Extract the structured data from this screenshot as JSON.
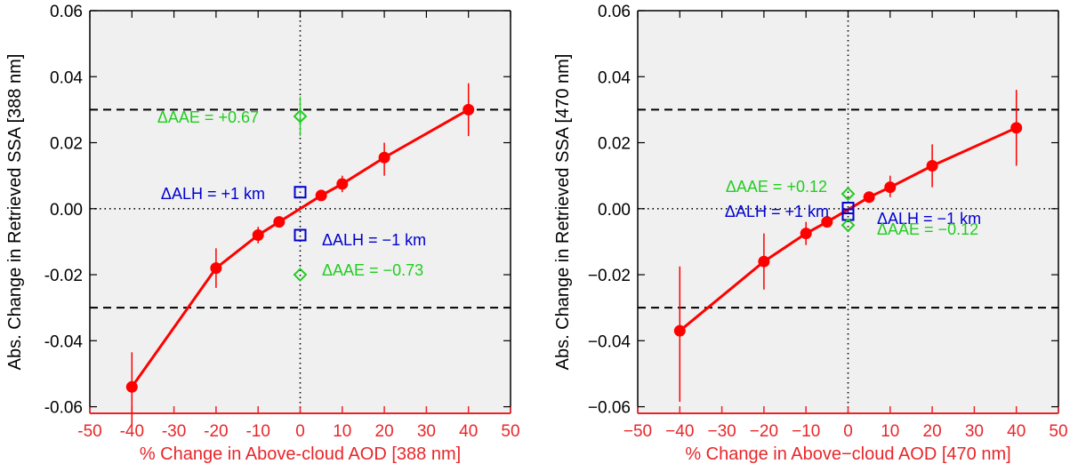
{
  "colors": {
    "background": "#ffffff",
    "plot_background": "#f0f0f0",
    "frame": "#000000",
    "x_axis": "#e8262a",
    "series": "#ff0000",
    "alh_markers": "#0000d0",
    "aae_markers": "#22cc22"
  },
  "chart_data": [
    {
      "type": "scatter",
      "xlabel": "% Change in Above-cloud AOD [388 nm]",
      "ylabel": "Abs. Change in Retrieved SSA [388 nm]",
      "xlim": [
        -50,
        50
      ],
      "ylim": [
        -0.062,
        0.06
      ],
      "xticks": [
        "-50",
        "-40",
        "-30",
        "-20",
        "-10",
        "0",
        "10",
        "20",
        "30",
        "40",
        "50"
      ],
      "yticks": [
        "-0.06",
        "-0.04",
        "-0.02",
        "0.00",
        "0.02",
        "0.04",
        "0.06"
      ],
      "reference_lines_y": [
        0.03,
        -0.03
      ],
      "grid": false,
      "series": [
        {
          "x": [
            -40,
            -20,
            -10,
            -5,
            5,
            10,
            20,
            40
          ],
          "y": [
            -0.054,
            -0.018,
            -0.008,
            -0.004,
            0.004,
            0.0075,
            0.0155,
            0.03
          ],
          "err_lo": [
            0.0115,
            0.006,
            0.0025,
            0.0012,
            0.0012,
            0.0025,
            0.0055,
            0.008
          ],
          "err_hi": [
            0.0105,
            0.006,
            0.0025,
            0.0012,
            0.0012,
            0.0025,
            0.0045,
            0.008
          ]
        }
      ],
      "markers": [
        {
          "kind": "aae",
          "x": 0,
          "y": 0.028,
          "err": 0.006
        },
        {
          "kind": "alh",
          "x": 0,
          "y": 0.005
        },
        {
          "kind": "alh",
          "x": 0,
          "y": -0.008
        },
        {
          "kind": "aae",
          "x": 0,
          "y": -0.02
        }
      ],
      "annotations": [
        {
          "text": "ΔAAE = +0.67",
          "kind": "aae"
        },
        {
          "text": "ΔALH = +1 km",
          "kind": "alh"
        },
        {
          "text": "ΔALH = −1 km",
          "kind": "alh"
        },
        {
          "text": "ΔAAE = −0.73",
          "kind": "aae"
        }
      ]
    },
    {
      "type": "scatter",
      "xlabel": "% Change in Above−cloud AOD [470 nm]",
      "ylabel": "Abs. Change in Retrieved SSA [470 nm]",
      "xlim": [
        -50,
        50
      ],
      "ylim": [
        -0.062,
        0.06
      ],
      "xticks": [
        "−50",
        "−40",
        "−30",
        "−20",
        "−10",
        "0",
        "10",
        "20",
        "30",
        "40",
        "50"
      ],
      "yticks": [
        "−0.06",
        "−0.04",
        "−0.02",
        "0.00",
        "0.02",
        "0.04",
        "0.06"
      ],
      "reference_lines_y": [
        0.03,
        -0.03
      ],
      "grid": false,
      "series": [
        {
          "x": [
            -40,
            -20,
            -10,
            -5,
            5,
            10,
            20,
            40
          ],
          "y": [
            -0.037,
            -0.016,
            -0.0075,
            -0.004,
            0.0035,
            0.0065,
            0.013,
            0.0245
          ],
          "err_lo": [
            0.0215,
            0.0085,
            0.0035,
            0.0012,
            0.0012,
            0.003,
            0.0065,
            0.0115
          ],
          "err_hi": [
            0.0195,
            0.0085,
            0.0035,
            0.0012,
            0.0012,
            0.0035,
            0.0065,
            0.0115
          ]
        }
      ],
      "markers": [
        {
          "kind": "aae",
          "x": 0,
          "y": 0.0045
        },
        {
          "kind": "alh",
          "x": 0,
          "y": 0.0002
        },
        {
          "kind": "alh",
          "x": 0,
          "y": -0.0018
        },
        {
          "kind": "aae",
          "x": 0,
          "y": -0.005
        }
      ],
      "annotations": [
        {
          "text": "ΔAAE = +0.12",
          "kind": "aae"
        },
        {
          "text": "ΔALH = +1 km",
          "kind": "alh"
        },
        {
          "text": "ΔALH = −1 km",
          "kind": "alh"
        },
        {
          "text": "ΔAAE = −0.12",
          "kind": "aae"
        }
      ]
    }
  ]
}
